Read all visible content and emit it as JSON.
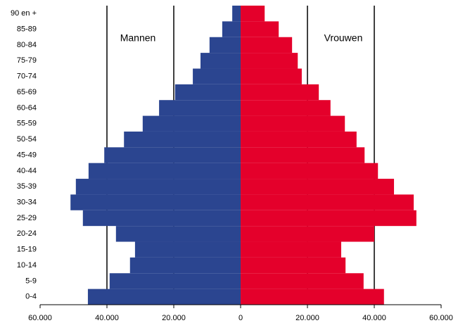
{
  "chart_data": {
    "type": "pyramid",
    "categories": [
      "0-4",
      "5-9",
      "10-14",
      "15-19",
      "20-24",
      "25-29",
      "30-34",
      "35-39",
      "40-44",
      "45-49",
      "50-54",
      "55-59",
      "60-64",
      "65-69",
      "70-74",
      "75-79",
      "80-84",
      "85-89",
      "90 en +"
    ],
    "series": [
      {
        "name": "Mannen",
        "color": "#2b4590",
        "values": [
          -45700,
          -39200,
          -33100,
          -31600,
          -37300,
          -47200,
          -50900,
          -49300,
          -45500,
          -40800,
          -34900,
          -29300,
          -24400,
          -19600,
          -14300,
          -12000,
          -9300,
          -5500,
          -2500
        ]
      },
      {
        "name": "Vrouwen",
        "color": "#e4002b",
        "values": [
          42900,
          36800,
          31400,
          30100,
          40000,
          52600,
          51800,
          45900,
          41100,
          37100,
          34700,
          31200,
          26900,
          23400,
          18300,
          17100,
          15400,
          11400,
          7200
        ]
      }
    ],
    "xlim": [
      -60000,
      60000
    ],
    "xticks": [
      {
        "value": -60000,
        "label": "60.000"
      },
      {
        "value": -40000,
        "label": "40.000"
      },
      {
        "value": -20000,
        "label": "20.000"
      },
      0,
      {
        "value": 20000,
        "label": "20.000"
      },
      {
        "value": 40000,
        "label": "40.000"
      },
      {
        "value": 60000,
        "label": "60.000"
      }
    ],
    "grid": true
  }
}
